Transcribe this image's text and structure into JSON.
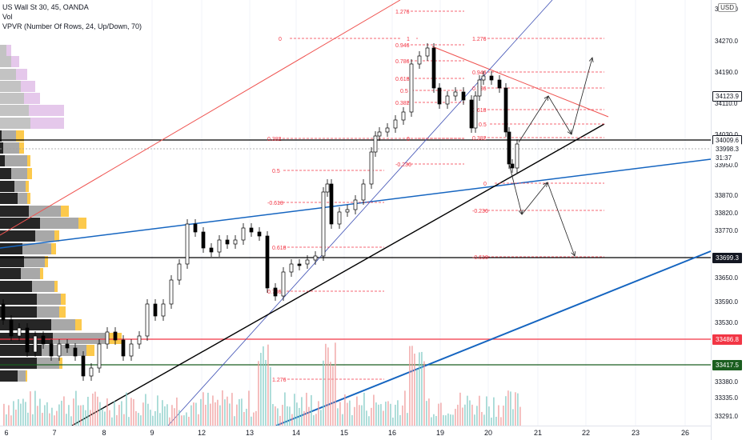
{
  "legend": {
    "symbol": "US Wall St 30, 45, OANDA",
    "vol": "Vol",
    "vpvr": "VPVR (Number Of Rows, 24, Up/Down, 70)"
  },
  "currency": "USD",
  "colors": {
    "up": "#26a69a",
    "down": "#ef5350",
    "candle": "#000000",
    "fib": "#f23645",
    "blue_line": "#1565c0",
    "thin_blue": "#3f51b5",
    "red_channel": "#ef5350",
    "black_line": "#000000",
    "red_hline": "#f23645",
    "green_hline": "#1b5e20",
    "vp_up": "#fbc02d",
    "vp_down": "#9e9e9e",
    "vp_up_light": "#e1bee7",
    "vp_down_light": "#bdbdbd"
  },
  "price_axis": {
    "ticks": [
      "34350.0",
      "34270.0",
      "34190.0",
      "34110.0",
      "34030.0",
      "33950.0",
      "33870.0",
      "33820.0",
      "33770.0",
      "33710.0",
      "33650.0",
      "33590.0",
      "33530.0",
      "33420.0",
      "33380.0",
      "33335.0",
      "33291.0"
    ],
    "tags": [
      {
        "label": "34123.9",
        "bg": "#ffffff",
        "fg": "#131722",
        "border": "#131722"
      },
      {
        "label": "34009.6",
        "bg": "#ffffff",
        "fg": "#131722",
        "border": "#131722"
      },
      {
        "label": "33998.3",
        "bg": "#ffffff",
        "fg": "#131722",
        "border": "#ffffff"
      },
      {
        "label": "31:37",
        "bg": "#ffffff",
        "fg": "#131722",
        "border": "#ffffff"
      },
      {
        "label": "33699.3",
        "bg": "#131722",
        "fg": "#ffffff",
        "border": "#131722"
      },
      {
        "label": "33486.8",
        "bg": "#f23645",
        "fg": "#ffffff",
        "border": "#f23645"
      },
      {
        "label": "33417.5",
        "bg": "#1b5e20",
        "fg": "#ffffff",
        "border": "#1b5e20"
      }
    ]
  },
  "time_axis": {
    "ticks": [
      "6",
      "7",
      "8",
      "9",
      "12",
      "13",
      "14",
      "15",
      "16",
      "19",
      "20",
      "21",
      "22",
      "23",
      "26"
    ]
  },
  "fib_upper": {
    "labels": [
      "1.276",
      "0",
      "1",
      "0.946",
      "0.786",
      "0.618",
      "0.5",
      "0.382",
      "0.382",
      "0",
      "-0.236",
      "0.5",
      "-0.618",
      "0.618",
      "0.786",
      "1.276"
    ]
  },
  "fib_right": {
    "labels": [
      "1.276",
      "0.946",
      "0.786",
      "0.618",
      "0.5",
      "0.382",
      "0",
      "-0.236",
      "-0.618"
    ]
  }
}
